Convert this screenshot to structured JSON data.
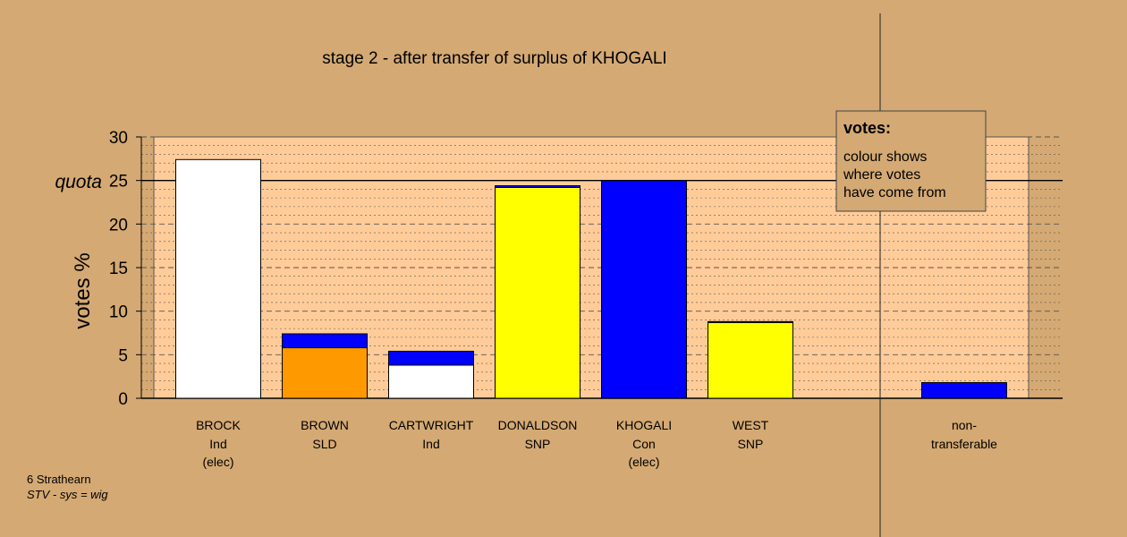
{
  "chart_data": {
    "type": "bar",
    "title": "stage 2 - after transfer of surplus of KHOGALI",
    "ylabel": "votes %",
    "ylim": [
      0,
      30
    ],
    "yticks": [
      0,
      5,
      10,
      15,
      20,
      25,
      30
    ],
    "quota": 25,
    "quota_label": "quota",
    "grid": "dashed horizontal",
    "candidates": [
      {
        "name": "BROCK",
        "party": "Ind",
        "status": "(elec)",
        "segments": [
          {
            "value": 27.4,
            "color": "#ffffff"
          }
        ]
      },
      {
        "name": "BROWN",
        "party": "SLD",
        "status": "",
        "segments": [
          {
            "value": 5.8,
            "color": "#ff9900"
          },
          {
            "value": 1.6,
            "color": "#0000ff"
          }
        ]
      },
      {
        "name": "CARTWRIGHT",
        "party": "Ind",
        "status": "",
        "segments": [
          {
            "value": 3.8,
            "color": "#ffffff"
          },
          {
            "value": 1.6,
            "color": "#0000ff"
          }
        ]
      },
      {
        "name": "DONALDSON",
        "party": "SNP",
        "status": "",
        "segments": [
          {
            "value": 24.2,
            "color": "#ffff00"
          },
          {
            "value": 0.2,
            "color": "#0000ff"
          }
        ]
      },
      {
        "name": "KHOGALI",
        "party": "Con",
        "status": "(elec)",
        "segments": [
          {
            "value": 25.0,
            "color": "#0000ff"
          }
        ]
      },
      {
        "name": "WEST",
        "party": "SNP",
        "status": "",
        "segments": [
          {
            "value": 8.7,
            "color": "#ffff00"
          },
          {
            "value": 0.1,
            "color": "#0000ff"
          }
        ]
      }
    ],
    "non_transferable": {
      "label1": "non-",
      "label2": "transferable",
      "segments": [
        {
          "value": 1.8,
          "color": "#0000ff"
        }
      ]
    },
    "legend": {
      "title": "votes:",
      "lines": [
        "colour shows",
        "where votes",
        "have come from"
      ],
      "placement": "top-right"
    }
  },
  "footer": {
    "area": "6 Strathearn",
    "system": "STV - sys = wig"
  }
}
